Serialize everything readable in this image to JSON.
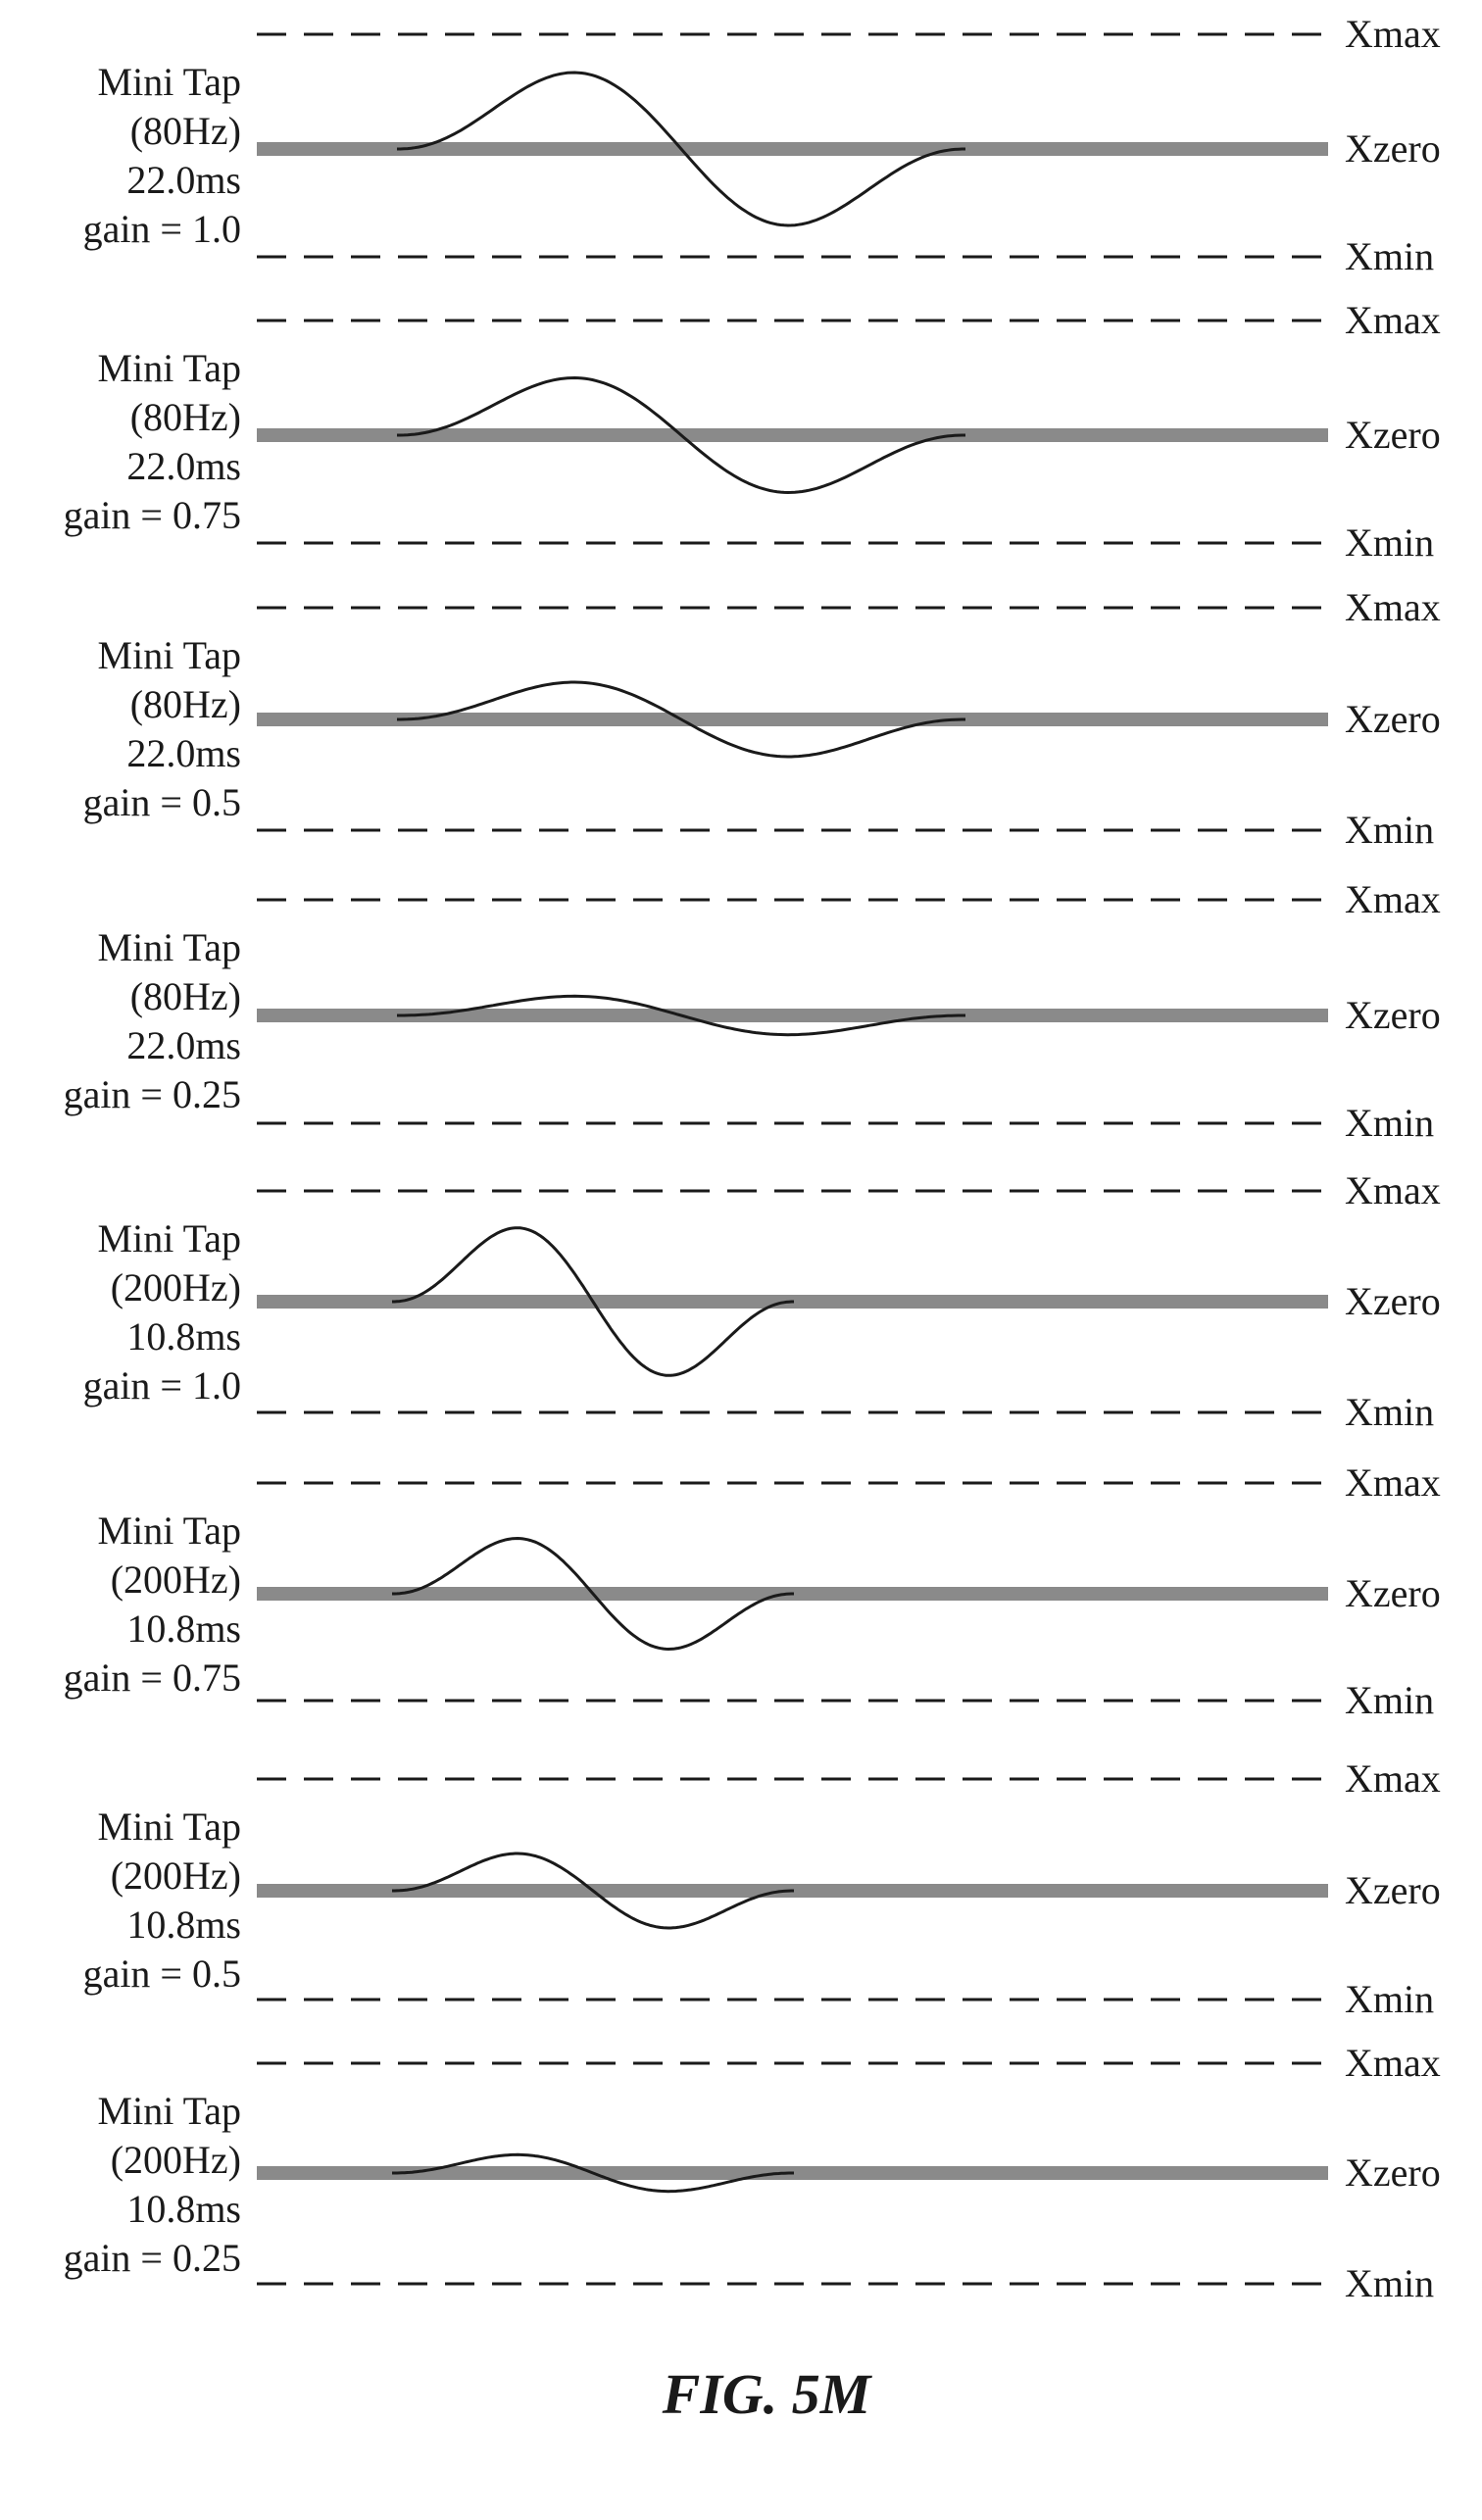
{
  "figure_caption": "FIG. 5M",
  "colors": {
    "ink": "#1a1a1a",
    "baseline": "#8a8a8a",
    "background": "#ffffff"
  },
  "line_labels": {
    "max": "Xmax",
    "zero": "Xzero",
    "min": "Xmin"
  },
  "panels": [
    {
      "name": "Mini Tap",
      "frequency": "(80Hz)",
      "duration": "22.0ms",
      "gain_text": "gain = 1.0",
      "frequency_hz": 80,
      "gain": 1.0
    },
    {
      "name": "Mini Tap",
      "frequency": "(80Hz)",
      "duration": "22.0ms",
      "gain_text": "gain = 0.75",
      "frequency_hz": 80,
      "gain": 0.75
    },
    {
      "name": "Mini Tap",
      "frequency": "(80Hz)",
      "duration": "22.0ms",
      "gain_text": "gain = 0.5",
      "frequency_hz": 80,
      "gain": 0.5
    },
    {
      "name": "Mini Tap",
      "frequency": "(80Hz)",
      "duration": "22.0ms",
      "gain_text": "gain = 0.25",
      "frequency_hz": 80,
      "gain": 0.25
    },
    {
      "name": "Mini Tap",
      "frequency": "(200Hz)",
      "duration": "10.8ms",
      "gain_text": "gain = 1.0",
      "frequency_hz": 200,
      "gain": 1.0
    },
    {
      "name": "Mini Tap",
      "frequency": "(200Hz)",
      "duration": "10.8ms",
      "gain_text": "gain = 0.75",
      "frequency_hz": 200,
      "gain": 0.75
    },
    {
      "name": "Mini Tap",
      "frequency": "(200Hz)",
      "duration": "10.8ms",
      "gain_text": "gain = 0.5",
      "frequency_hz": 200,
      "gain": 0.5
    },
    {
      "name": "Mini Tap",
      "frequency": "(200Hz)",
      "duration": "10.8ms",
      "gain_text": "gain = 0.25",
      "frequency_hz": 200,
      "gain": 0.25
    }
  ]
}
